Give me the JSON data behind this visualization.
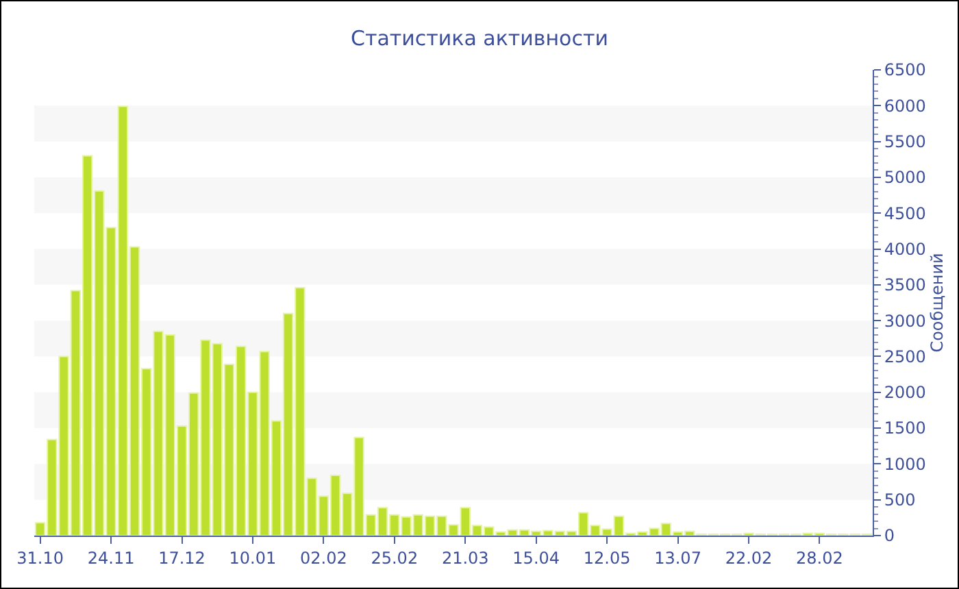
{
  "chart_data": {
    "type": "bar",
    "title": "Статистика активности",
    "ylabel": "Сообщений",
    "categories": [
      "31.10",
      null,
      null,
      null,
      null,
      null,
      "24.11",
      null,
      null,
      null,
      null,
      null,
      "17.12",
      null,
      null,
      null,
      null,
      null,
      "10.01",
      null,
      null,
      null,
      null,
      null,
      "02.02",
      null,
      null,
      null,
      null,
      null,
      "25.02",
      null,
      null,
      null,
      null,
      null,
      "21.03",
      null,
      null,
      null,
      null,
      null,
      "15.04",
      null,
      null,
      null,
      null,
      null,
      "12.05",
      null,
      null,
      null,
      null,
      null,
      "13.07",
      null,
      null,
      null,
      null,
      null,
      "22.02",
      null,
      null,
      null,
      null,
      null,
      "28.02",
      null,
      null,
      null,
      null
    ],
    "values": [
      180,
      1340,
      2500,
      3420,
      5300,
      4810,
      4300,
      5990,
      4030,
      2330,
      2850,
      2800,
      1530,
      1990,
      2730,
      2680,
      2390,
      2640,
      2000,
      2570,
      1600,
      3100,
      3460,
      800,
      550,
      840,
      590,
      1370,
      290,
      390,
      290,
      260,
      290,
      270,
      270,
      150,
      390,
      140,
      120,
      50,
      80,
      80,
      60,
      70,
      60,
      60,
      320,
      140,
      90,
      270,
      30,
      50,
      100,
      170,
      50,
      60,
      20,
      20,
      20,
      20,
      30,
      20,
      20,
      20,
      20,
      30,
      30,
      20,
      20,
      20,
      20
    ],
    "color": "#bde02f",
    "ylim": [
      0,
      6500
    ],
    "yticks": [
      0,
      500,
      1000,
      1500,
      2000,
      2500,
      3000,
      3500,
      4000,
      4500,
      5000,
      5500,
      6000,
      6500
    ],
    "bands": [
      {
        "axis": "y",
        "from": 500,
        "to": 1000,
        "color": "#f7f7f7"
      },
      {
        "axis": "y",
        "from": 1500,
        "to": 2000,
        "color": "#f7f7f7"
      },
      {
        "axis": "y",
        "from": 2500,
        "to": 3000,
        "color": "#f7f7f7"
      },
      {
        "axis": "y",
        "from": 3500,
        "to": 4000,
        "color": "#f7f7f7"
      },
      {
        "axis": "y",
        "from": 4500,
        "to": 5000,
        "color": "#f7f7f7"
      },
      {
        "axis": "y",
        "from": 5500,
        "to": 6000,
        "color": "#f7f7f7"
      }
    ],
    "grid": false,
    "legend": false
  }
}
